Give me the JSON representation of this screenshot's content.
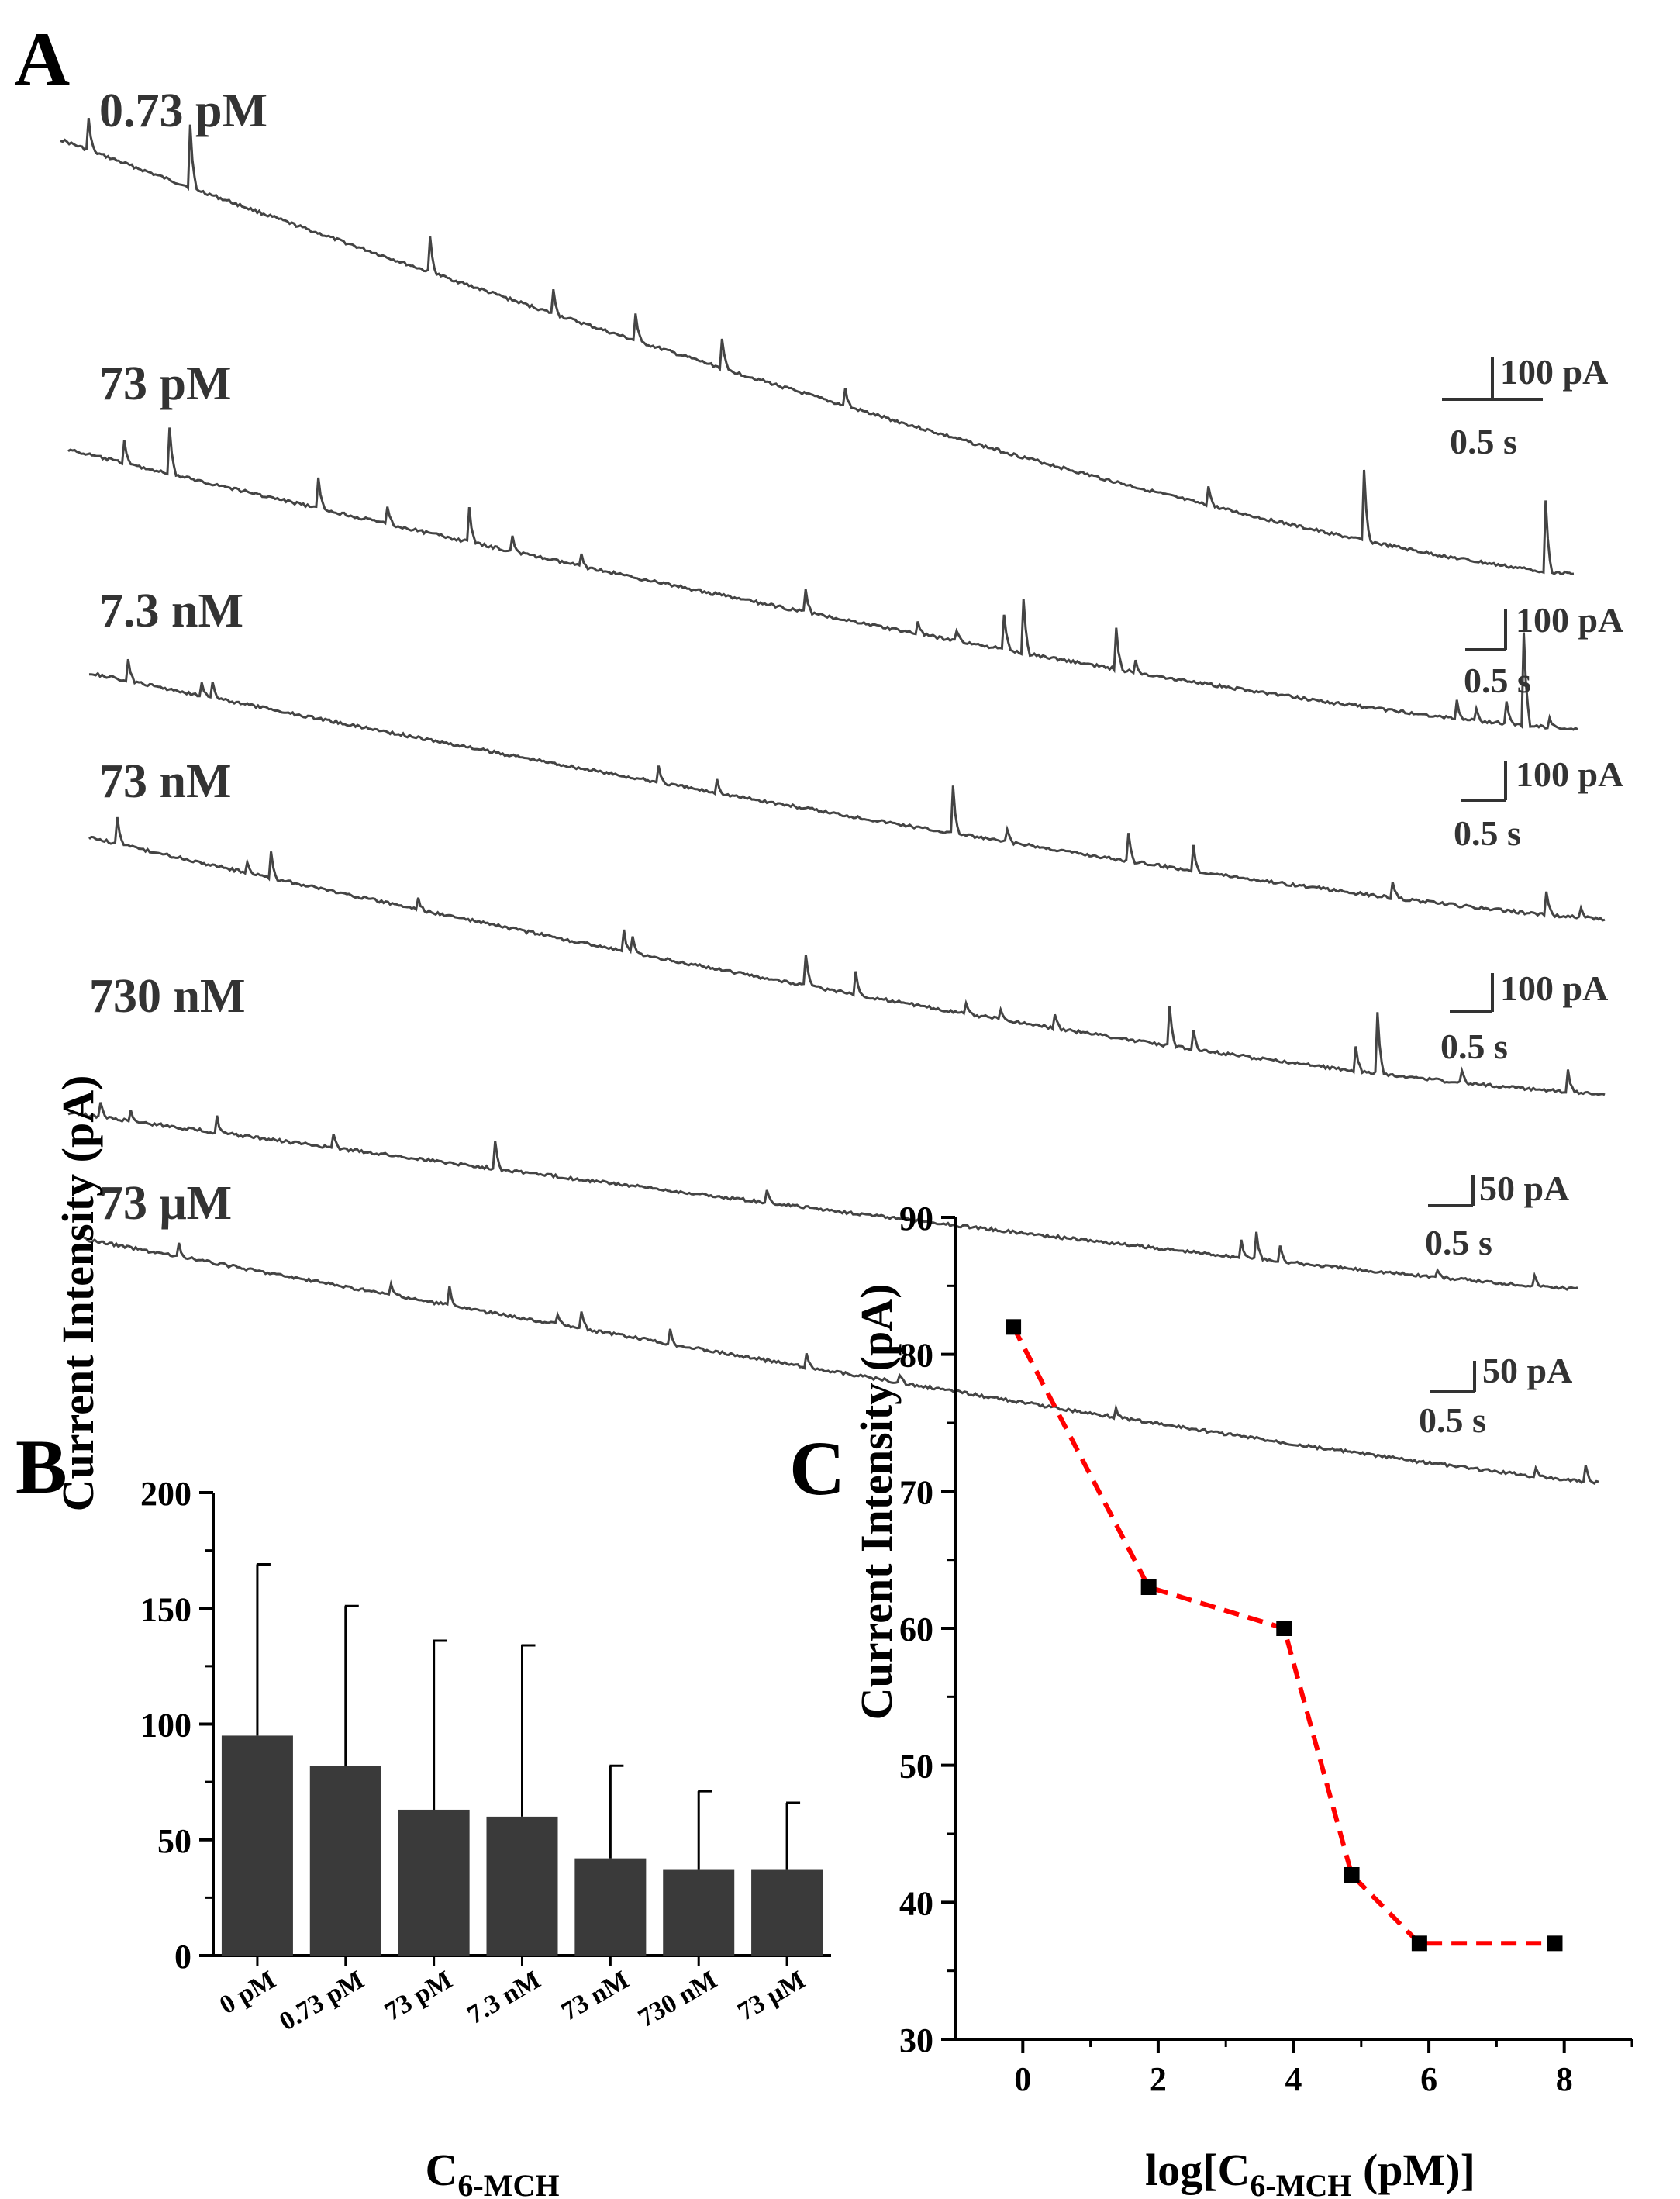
{
  "panel_a": {
    "letter": "A",
    "traces": [
      {
        "label": "0.73 pM",
        "scale_current": "100 pA",
        "scale_time": "0.5 s"
      },
      {
        "label": "73 pM",
        "scale_current": "100 pA",
        "scale_time": "0.5 s"
      },
      {
        "label": "7.3 nM",
        "scale_current": "100 pA",
        "scale_time": "0.5 s"
      },
      {
        "label": "73 nM",
        "scale_current": "100 pA",
        "scale_time": "0.5 s"
      },
      {
        "label": "730 nM",
        "scale_current": "50 pA",
        "scale_time": "0.5 s"
      },
      {
        "label": "73 μM",
        "scale_current": "50 pA",
        "scale_time": "0.5 s"
      }
    ]
  },
  "panel_b": {
    "letter": "B"
  },
  "panel_c": {
    "letter": "C"
  },
  "chart_data": [
    {
      "id": "B",
      "type": "bar",
      "title": "",
      "xlabel": "C",
      "xlabel_sub": "6-MCH",
      "ylabel": "Current Intensity (pA)",
      "ylim": [
        0,
        200
      ],
      "yticks": [
        0,
        50,
        100,
        150,
        200
      ],
      "categories": [
        "0 pM",
        "0.73 pM",
        "73 pM",
        "7.3 nM",
        "73 nM",
        "730 nM",
        "73 μM"
      ],
      "values": [
        95,
        82,
        63,
        60,
        42,
        37,
        37
      ],
      "error_upper": [
        169,
        151,
        136,
        134,
        82,
        71,
        66
      ],
      "bar_color": "#3a3a3a"
    },
    {
      "id": "C",
      "type": "line",
      "title": "",
      "xlabel_prefix": "log[C",
      "xlabel_sub": "6-MCH",
      "xlabel_suffix": " (pM)]",
      "ylabel": "Current Intensity (pA)",
      "xlim": [
        -1,
        9
      ],
      "ylim": [
        30,
        90
      ],
      "xticks": [
        0,
        2,
        4,
        6,
        8
      ],
      "yticks": [
        30,
        40,
        50,
        60,
        70,
        80,
        90
      ],
      "series": [
        {
          "name": "Current Intensity",
          "x": [
            -0.14,
            1.86,
            3.86,
            4.86,
            5.86,
            7.86
          ],
          "y": [
            82,
            63,
            60,
            42,
            37,
            37
          ],
          "line_color": "#ff0000",
          "marker_color": "#000000"
        }
      ]
    }
  ]
}
